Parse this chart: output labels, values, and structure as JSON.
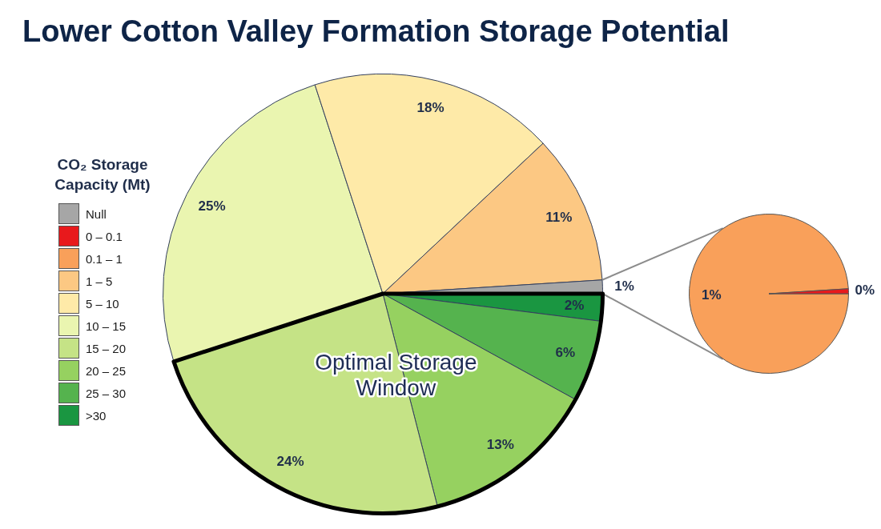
{
  "chart_data": [
    {
      "type": "pie",
      "title": "Lower Cotton Valley Formation Storage Potential",
      "legend_title": "CO₂ Storage Capacity (Mt)",
      "legend": "left",
      "categories": [
        "Null",
        "0 – 0.1",
        "0.1 – 1",
        "1 – 5",
        "5 – 10",
        "10 – 15",
        "15 – 20",
        "20 – 25",
        "25 – 30",
        ">30"
      ],
      "values": [
        1,
        null,
        null,
        11,
        18,
        25,
        24,
        13,
        6,
        2
      ],
      "colors": [
        "#a6a6a6",
        "#e8191c",
        "#f9a05a",
        "#fcc883",
        "#feeaa8",
        "#eaf5b0",
        "#c5e386",
        "#96d160",
        "#55b34e",
        "#1a9641"
      ],
      "value_labels": [
        "1%",
        null,
        null,
        "11%",
        "18%",
        "25%",
        "24%",
        "13%",
        "6%",
        "2%"
      ],
      "annotations": [
        "Optimal Storage Window"
      ]
    },
    {
      "type": "pie",
      "categories": [
        null,
        null
      ],
      "values": [
        0.01,
        0.99
      ],
      "colors": [
        "#e8191c",
        "#f9a05a"
      ],
      "value_labels": [
        "0%",
        "1%"
      ]
    }
  ]
}
